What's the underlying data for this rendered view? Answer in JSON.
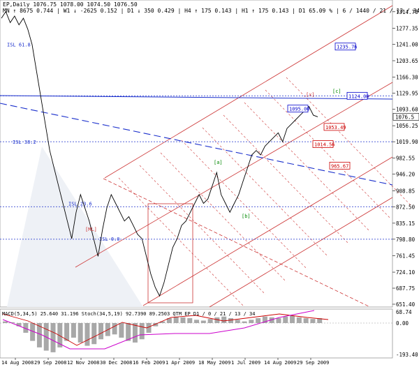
{
  "header": {
    "line1": "EP,Daily  1076.75 1078.00 1074.50 1076.50",
    "line2": "MN  ↑ 8675  0.744 | W1  ↓ -2625  0.152 | D1 ↓ 350  0.429 | H4 ↑ 175  0.143 | H1 ↑ 175  0.143 | D1  65.09 % | 6 / 1440 / 21 / 13 / 34"
  },
  "chart_data": [
    {
      "type": "line",
      "title": "EP,Daily",
      "ylim": [
        651.4,
        1335
      ],
      "price_ticks": [
        1314.7,
        1277.35,
        1241.0,
        1203.65,
        1166.3,
        1129.95,
        1093.6,
        1056.25,
        1019.9,
        982.55,
        946.2,
        908.85,
        872.5,
        835.15,
        798.8,
        761.45,
        724.1,
        687.75,
        651.4
      ],
      "current_price": 1076.5,
      "date_labels": [
        "14 Aug 2008",
        "29 Sep 2008",
        "12 Nov 2008",
        "30 Dec 2008",
        "16 Feb 2009",
        "1 Apr 2009",
        "18 May 2009",
        "1 Jul 2009",
        "14 Aug 2009",
        "29 Sep 2009"
      ],
      "isl_levels": [
        {
          "label": "ISL 61.8",
          "price": 1241.0
        },
        {
          "label": "ISL 38.2",
          "price": 1019.9
        },
        {
          "label": "ISL 23.6",
          "price": 880
        },
        {
          "label": "ISL 0.0",
          "price": 800
        }
      ],
      "hlines": [
        1124.0,
        1019.9,
        872.5,
        798.8
      ],
      "price_tags": [
        {
          "value": "1235.76",
          "color": "#0000cc"
        },
        {
          "value": "1124.00",
          "color": "#0000cc"
        },
        {
          "value": "1095.00",
          "color": "#0000cc"
        },
        {
          "value": "1053.49",
          "color": "#cc0000"
        },
        {
          "value": "1014.56",
          "color": "#cc0000"
        },
        {
          "value": "965.67",
          "color": "#cc0000"
        }
      ],
      "wave_labels": [
        "[a]",
        "[b]",
        "[c]",
        "[x]",
        "[ML]"
      ],
      "price_series": [
        1300,
        1315,
        1290,
        1305,
        1285,
        1300,
        1275,
        1240,
        1180,
        1120,
        1060,
        1000,
        960,
        920,
        880,
        840,
        800,
        860,
        900,
        870,
        840,
        800,
        760,
        820,
        870,
        900,
        880,
        860,
        840,
        850,
        830,
        810,
        800,
        760,
        720,
        690,
        670,
        700,
        740,
        780,
        800,
        830,
        840,
        860,
        880,
        900,
        880,
        890,
        920,
        950,
        900,
        880,
        860,
        880,
        900,
        930,
        960,
        990,
        1000,
        990,
        1010,
        1020,
        1030,
        1040,
        1020,
        1050,
        1060,
        1070,
        1080,
        1090,
        1100,
        1080,
        1076.5
      ]
    },
    {
      "type": "line",
      "title": "MACD(5,34,5) 25.640 31.196  Stoch(34,5,19) 92.7390 89.2503  QTM EP D1 / 0 / 21 / 13 / 34",
      "ylim": [
        -193.4,
        68.74
      ],
      "ticks": [
        68.74,
        0.0,
        -193.4
      ],
      "macd_series": [
        10,
        5,
        -20,
        -60,
        -110,
        -150,
        -170,
        -180,
        -150,
        -110,
        -90,
        -120,
        -140,
        -130,
        -100,
        -80,
        -70,
        -90,
        -110,
        -120,
        -100,
        -60,
        -20,
        10,
        30,
        40,
        35,
        30,
        20,
        15,
        25,
        35,
        40,
        30,
        20,
        10,
        20,
        30,
        40,
        35,
        30,
        40,
        45,
        35,
        30,
        25,
        30
      ]
    }
  ]
}
